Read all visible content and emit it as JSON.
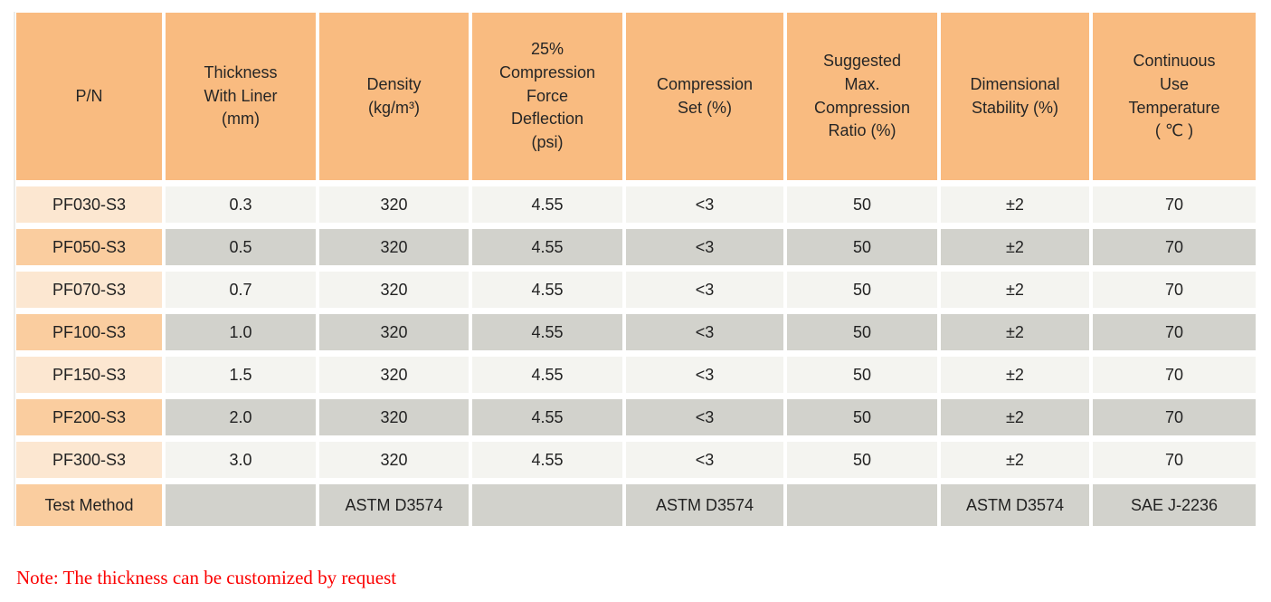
{
  "colors": {
    "header_bg": "#f9bb80",
    "pn_light": "#fce7d1",
    "pn_dark": "#facd9f",
    "row_light": "#f4f4f0",
    "row_dark": "#d2d2cc",
    "note_red": "#fb0000",
    "edge_line": "#ececea"
  },
  "table": {
    "headers": [
      "P/N",
      "Thickness\nWith Liner\n(mm)",
      "Density\n(kg/m³)",
      "25%\nCompression\nForce\nDeflection\n(psi)",
      "Compression\nSet (%)",
      "Suggested\nMax.\nCompression\nRatio (%)",
      "Dimensional\nStability (%)",
      "Continuous\nUse\nTemperature\n( ℃ )"
    ],
    "rows": [
      [
        "PF030-S3",
        "0.3",
        "320",
        "4.55",
        "<3",
        "50",
        "±2",
        "70"
      ],
      [
        "PF050-S3",
        "0.5",
        "320",
        "4.55",
        "<3",
        "50",
        "±2",
        "70"
      ],
      [
        "PF070-S3",
        "0.7",
        "320",
        "4.55",
        "<3",
        "50",
        "±2",
        "70"
      ],
      [
        "PF100-S3",
        "1.0",
        "320",
        "4.55",
        "<3",
        "50",
        "±2",
        "70"
      ],
      [
        "PF150-S3",
        "1.5",
        "320",
        "4.55",
        "<3",
        "50",
        "±2",
        "70"
      ],
      [
        "PF200-S3",
        "2.0",
        "320",
        "4.55",
        "<3",
        "50",
        "±2",
        "70"
      ],
      [
        "PF300-S3",
        "3.0",
        "320",
        "4.55",
        "<3",
        "50",
        "±2",
        "70"
      ],
      [
        "Test Method",
        "",
        "ASTM D3574",
        "",
        "ASTM D3574",
        "",
        "ASTM D3574",
        "SAE J-2236"
      ]
    ]
  },
  "note": {
    "text": "Note: The thickness can be customized by request"
  }
}
